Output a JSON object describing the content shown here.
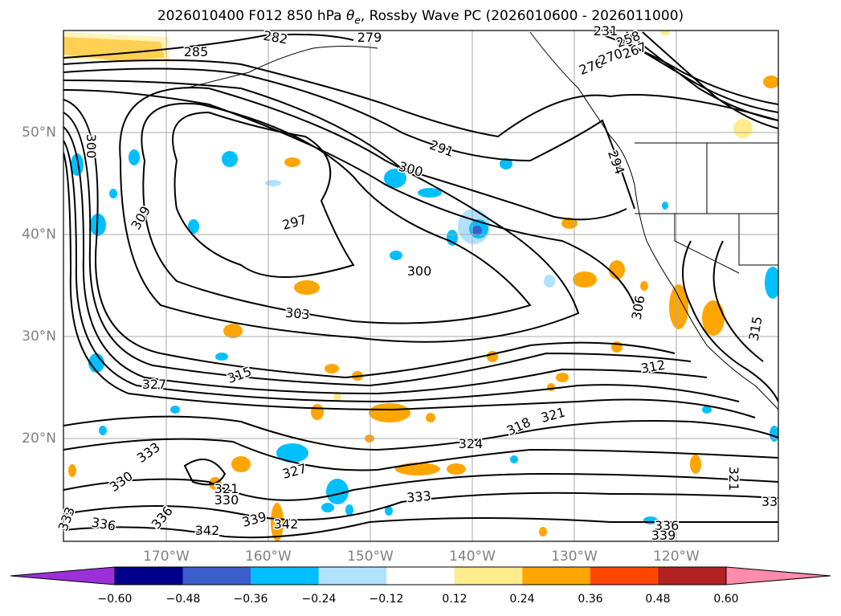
{
  "title": {
    "pre": "2026010400 F012 850 hPa ",
    "symbol": "θ",
    "sub": "e",
    "post": ", Rossby Wave PC (2026010600 - 2026011000)"
  },
  "lat_labels": [
    "50°N",
    "40°N",
    "30°N",
    "20°N"
  ],
  "lon_labels": [
    "170°W",
    "160°W",
    "150°W",
    "140°W",
    "130°W",
    "120°W"
  ],
  "colorbar": {
    "ticks": [
      "−0.60",
      "−0.48",
      "−0.36",
      "−0.24",
      "−0.12",
      "0.12",
      "0.24",
      "0.36",
      "0.48",
      "0.60"
    ],
    "colors": [
      "#9b30d8",
      "#00008b",
      "#3a5fcd",
      "#00bfff",
      "#b0e2ff",
      "#ffffff",
      "#ffec8b",
      "#ffa500",
      "#ff4500",
      "#b22222",
      "#ff8bad"
    ]
  },
  "contour_labels": [
    "285",
    "282",
    "279",
    "291",
    "300",
    "297",
    "300",
    "303",
    "309",
    "300",
    "294",
    "306",
    "315",
    "312",
    "327",
    "318",
    "321",
    "324",
    "330",
    "333",
    "327",
    "321",
    "333",
    "336",
    "339",
    "342",
    "336",
    "342",
    "330",
    "336",
    "333",
    "339",
    "321",
    "315",
    "258",
    "267",
    "276",
    "270",
    "231",
    "33"
  ],
  "colors": {
    "positive": "#ffa500",
    "positive_light": "#ffec8b",
    "negative": "#00bfff",
    "negative_light": "#b0e2ff",
    "negative_dark": "#3a5fcd",
    "contour": "#000000",
    "grid": "#aaaaaa",
    "axis_label": "#808080"
  }
}
